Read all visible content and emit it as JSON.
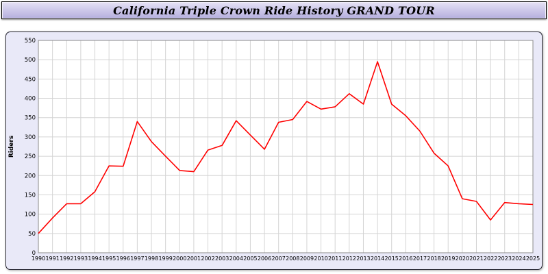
{
  "header": {
    "title": "California Triple Crown Ride History GRAND TOUR"
  },
  "colors": {
    "line": "#ff0000",
    "panel_background": "#e9e9f8",
    "header_background": "#c3bde6",
    "plot_background": "#ffffff",
    "gridline": "#d4d4d4"
  },
  "chart_data": {
    "type": "line",
    "title": "California Triple Crown Ride History GRAND TOUR",
    "xlabel": "",
    "ylabel": "Riders",
    "ylim": [
      0,
      550
    ],
    "ytick_step": 50,
    "grid": true,
    "legend_position": "none",
    "line_color": "#ff0000",
    "years": [
      1990,
      1991,
      1992,
      1993,
      1994,
      1995,
      1996,
      1997,
      1998,
      1999,
      2000,
      2001,
      2002,
      2003,
      2004,
      2005,
      2006,
      2007,
      2008,
      2009,
      2010,
      2011,
      2012,
      2013,
      2014,
      2015,
      2016,
      2017,
      2018,
      2019,
      2020,
      2021,
      2022,
      2023,
      2024,
      2025
    ],
    "values": [
      50,
      90,
      127,
      127,
      158,
      225,
      224,
      340,
      288,
      250,
      213,
      210,
      266,
      278,
      342,
      305,
      268,
      338,
      345,
      392,
      372,
      378,
      412,
      385,
      495,
      385,
      355,
      315,
      258,
      225,
      140,
      133,
      85,
      130,
      127,
      125
    ]
  }
}
